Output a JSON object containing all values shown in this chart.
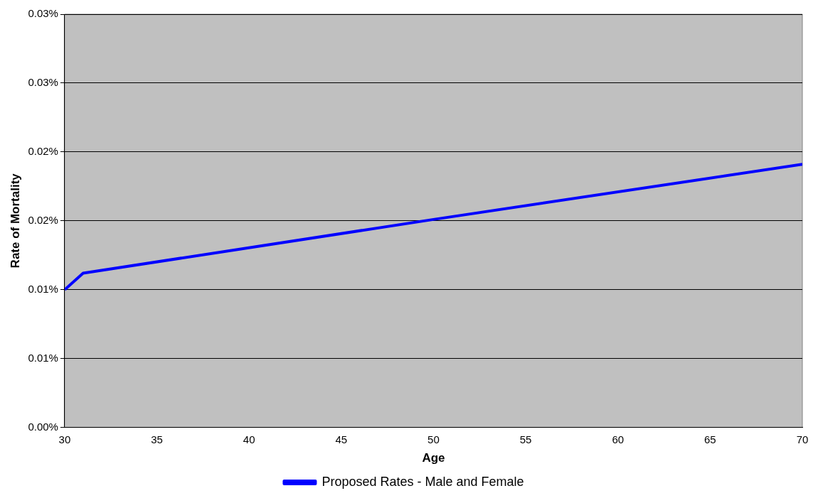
{
  "chart_data": {
    "type": "line",
    "xlabel": "Age",
    "ylabel": "Rate of Mortality",
    "x": [
      30,
      31,
      50,
      70
    ],
    "series": [
      {
        "name": "Proposed Rates - Male and Female",
        "color": "#0000ff",
        "values": [
          0.01,
          0.0112,
          0.0151,
          0.0191
        ]
      }
    ],
    "xlim": [
      30,
      70
    ],
    "xticks": [
      30,
      35,
      40,
      45,
      50,
      55,
      60,
      65,
      70
    ],
    "ylim": [
      0,
      0.03
    ],
    "yticks": [
      {
        "value": 0,
        "label": "0.00%"
      },
      {
        "value": 0.005,
        "label": "0.01%"
      },
      {
        "value": 0.01,
        "label": "0.01%"
      },
      {
        "value": 0.015,
        "label": "0.02%"
      },
      {
        "value": 0.02,
        "label": "0.02%"
      },
      {
        "value": 0.025,
        "label": "0.03%"
      },
      {
        "value": 0.03,
        "label": "0.03%"
      }
    ],
    "grid": "y",
    "legend": "bottom",
    "marker": "none",
    "line_style": "solid"
  }
}
